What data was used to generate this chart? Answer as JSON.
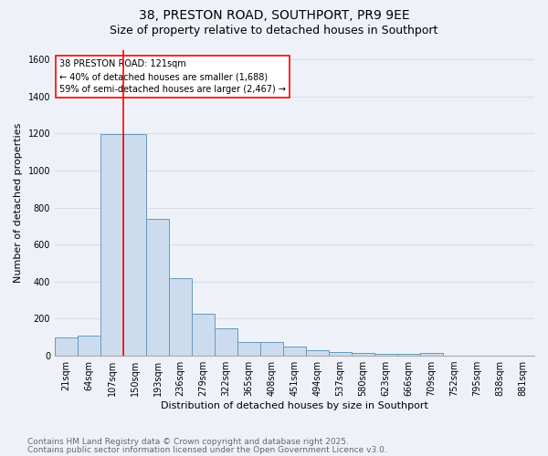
{
  "title1": "38, PRESTON ROAD, SOUTHPORT, PR9 9EE",
  "title2": "Size of property relative to detached houses in Southport",
  "xlabel": "Distribution of detached houses by size in Southport",
  "ylabel": "Number of detached properties",
  "categories": [
    "21sqm",
    "64sqm",
    "107sqm",
    "150sqm",
    "193sqm",
    "236sqm",
    "279sqm",
    "322sqm",
    "365sqm",
    "408sqm",
    "451sqm",
    "494sqm",
    "537sqm",
    "580sqm",
    "623sqm",
    "666sqm",
    "709sqm",
    "752sqm",
    "795sqm",
    "838sqm",
    "881sqm"
  ],
  "values": [
    100,
    110,
    1195,
    1195,
    740,
    420,
    225,
    150,
    75,
    75,
    50,
    30,
    20,
    15,
    10,
    10,
    15,
    0,
    0,
    0,
    0
  ],
  "bar_color": "#ccdcee",
  "bar_edge_color": "#6699bb",
  "red_line_index": 2.5,
  "annotation_text": "38 PRESTON ROAD: 121sqm\n← 40% of detached houses are smaller (1,688)\n59% of semi-detached houses are larger (2,467) →",
  "annotation_box_color": "white",
  "annotation_box_edge": "red",
  "ylim": [
    0,
    1650
  ],
  "yticks": [
    0,
    200,
    400,
    600,
    800,
    1000,
    1200,
    1400,
    1600
  ],
  "footer1": "Contains HM Land Registry data © Crown copyright and database right 2025.",
  "footer2": "Contains public sector information licensed under the Open Government Licence v3.0.",
  "bg_color": "#eef2f8",
  "grid_color": "#d8dde8",
  "title1_fontsize": 10,
  "title2_fontsize": 9,
  "axis_label_fontsize": 8,
  "tick_fontsize": 7,
  "footer_fontsize": 6.5,
  "annotation_fontsize": 7
}
